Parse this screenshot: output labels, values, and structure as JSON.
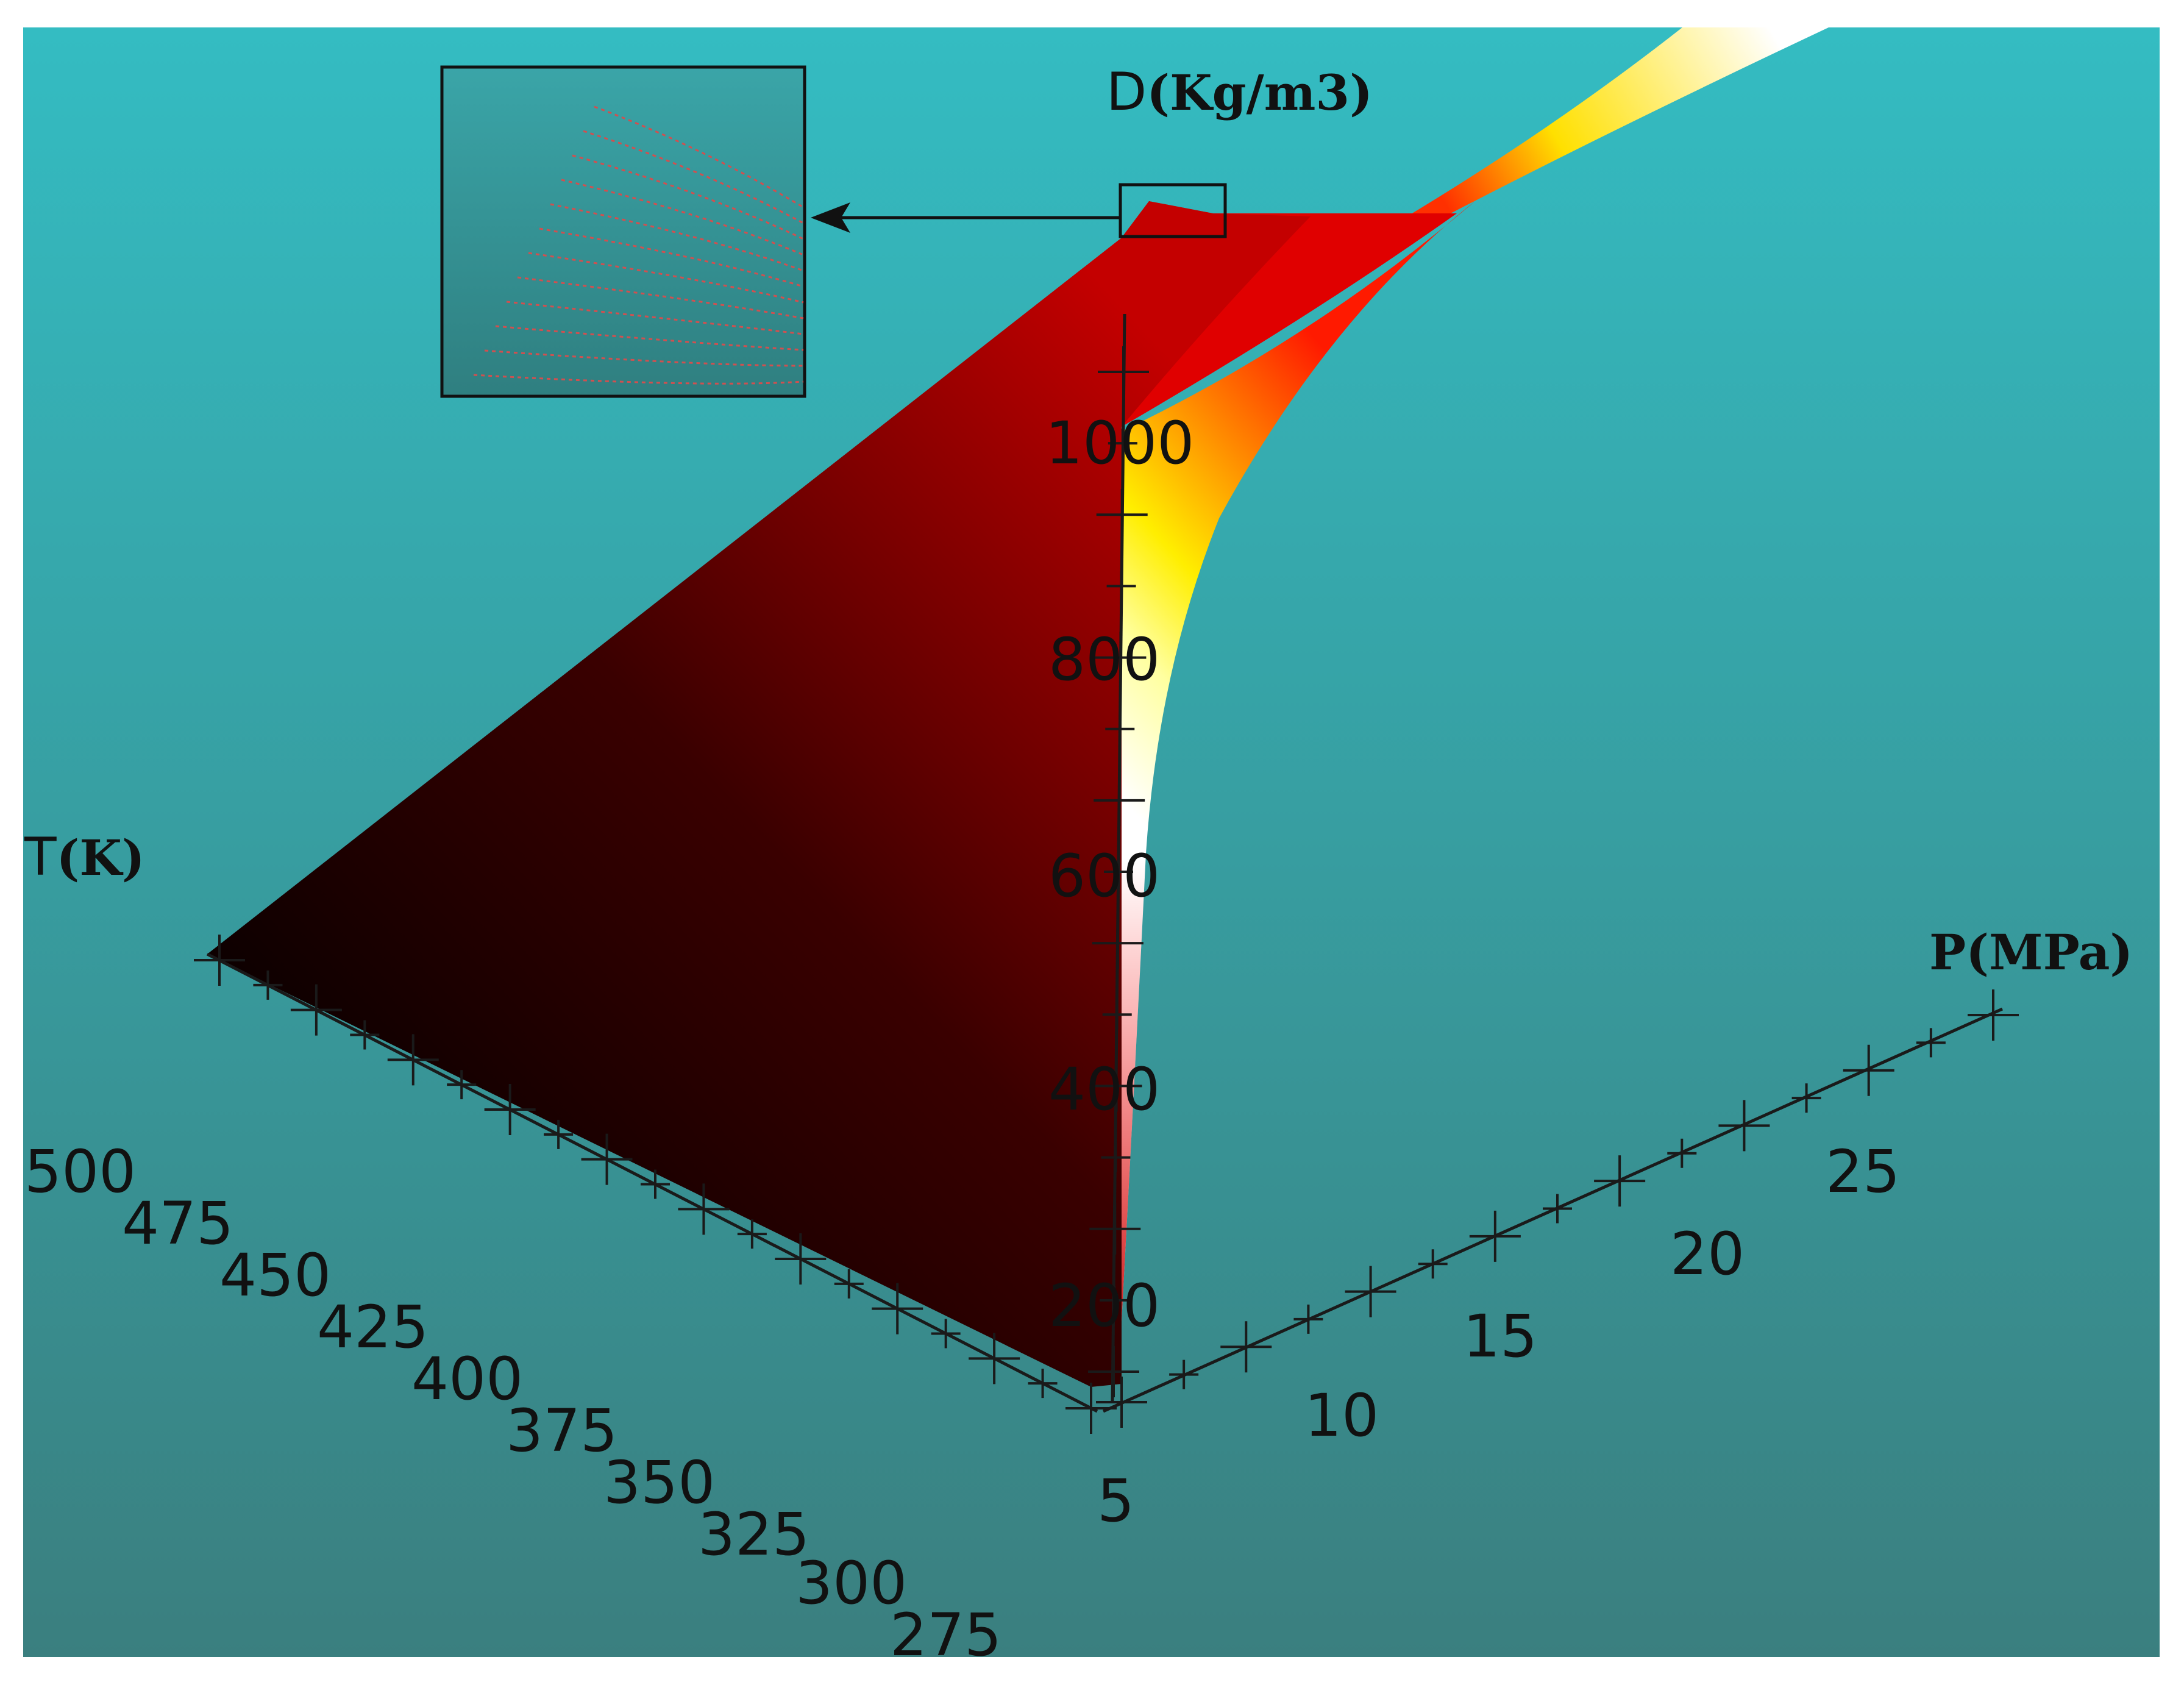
{
  "chart_data": {
    "type": "surface",
    "title": "",
    "axes": {
      "T": {
        "prefix": "T",
        "unit": "(K)",
        "ticks": [
          "500",
          "475",
          "450",
          "425",
          "400",
          "375",
          "350",
          "325",
          "300",
          "275"
        ],
        "range": [
          275,
          500
        ]
      },
      "P": {
        "label": "P(MPa)",
        "ticks": [
          "5",
          "10",
          "15",
          "20",
          "25"
        ],
        "range": [
          5,
          28
        ]
      },
      "D": {
        "prefix": "D",
        "unit": "(Kg/m3)",
        "ticks": [
          "200",
          "400",
          "600",
          "800",
          "1000"
        ],
        "range": [
          0,
          1100
        ]
      }
    },
    "colormap": [
      "#000000",
      "#7a0000",
      "#e00000",
      "#ff7a00",
      "#ffff00",
      "#ffffff"
    ],
    "background_gradient": [
      "#34bcc2",
      "#3a7f7f"
    ],
    "inset": {
      "shows": "zoomed region of the surface tip with grid lines",
      "line_color": "#d05050"
    },
    "grid": false,
    "legend": "none"
  }
}
